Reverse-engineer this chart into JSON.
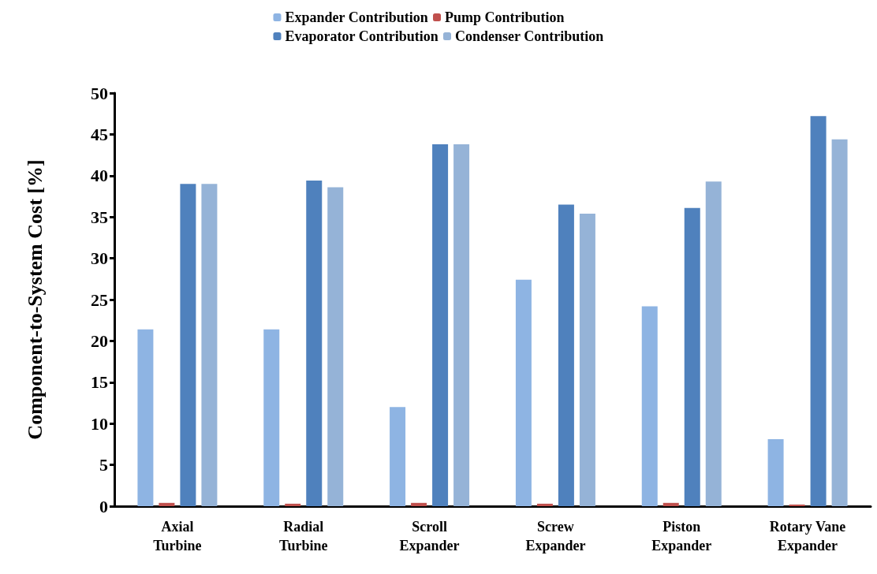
{
  "chart_data": {
    "type": "bar",
    "ylabel": "Component-to-System Cost [%]",
    "categories": [
      "Axial\nTurbine",
      "Radial\nTurbine",
      "Scroll\nExpander",
      "Screw\nExpander",
      "Piston\nExpander",
      "Rotary Vane\nExpander"
    ],
    "series": [
      {
        "name": "Expander Contribution",
        "color": "#8eb4e3",
        "values": [
          21.4,
          21.4,
          12.0,
          27.4,
          24.2,
          8.1
        ]
      },
      {
        "name": "Pump Contribution",
        "color": "#c0504d",
        "values": [
          0.4,
          0.3,
          0.4,
          0.3,
          0.4,
          0.2
        ]
      },
      {
        "name": "Evaporator Contribution",
        "color": "#4f81bd",
        "values": [
          39.0,
          39.4,
          43.8,
          36.5,
          36.1,
          47.2
        ]
      },
      {
        "name": "Condenser Contribution",
        "color": "#95b3d7",
        "values": [
          39.0,
          38.6,
          43.8,
          35.4,
          39.3,
          44.4
        ]
      }
    ],
    "ylim": [
      0,
      50
    ],
    "yticks": [
      0,
      5,
      10,
      15,
      20,
      25,
      30,
      35,
      40,
      45,
      50
    ],
    "grid": false,
    "legend": "top"
  }
}
